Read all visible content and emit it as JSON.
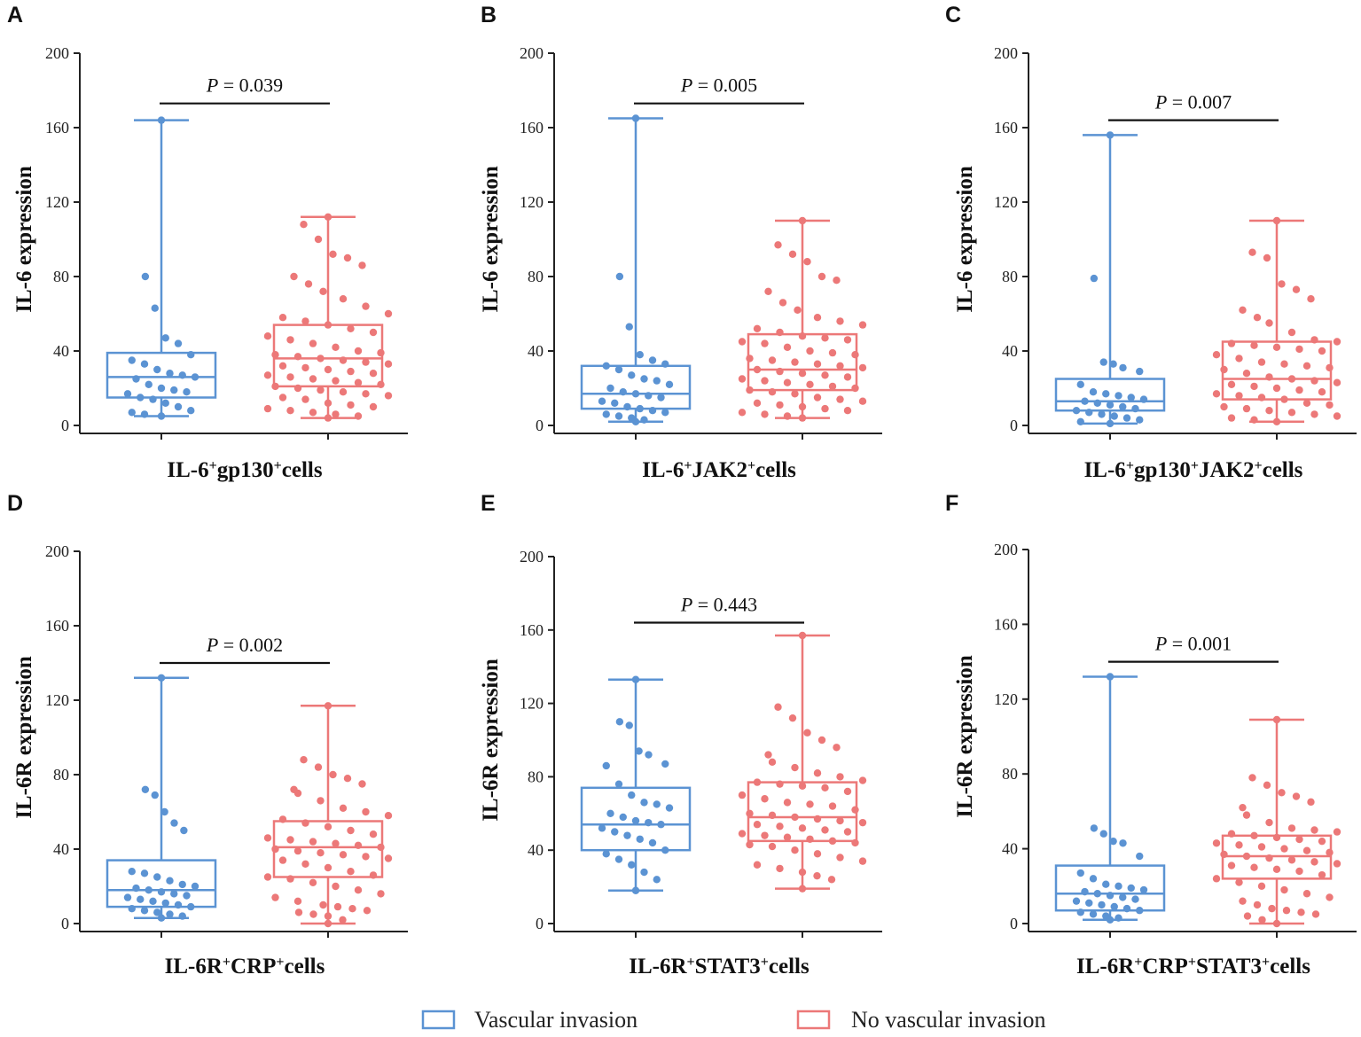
{
  "colors": {
    "vascular": "#5b93d3",
    "no_vascular": "#ec7878",
    "axis": "#222222"
  },
  "legend": {
    "items": [
      "Vascular invasion",
      "No vascular invasion"
    ]
  },
  "chart_data": [
    {
      "letter": "A",
      "type": "box",
      "ylabel": "IL-6 expression",
      "xlabel": {
        "parts": [
          [
            "IL-6",
            false
          ],
          [
            "+",
            true
          ],
          [
            "gp130",
            false
          ],
          [
            "+",
            true
          ],
          [
            "cells",
            false
          ]
        ]
      },
      "ylim": [
        0,
        200
      ],
      "yticks": [
        0,
        40,
        80,
        120,
        160,
        200
      ],
      "p_label": "P",
      "p_value": "= 0.039",
      "bracket_y": 173,
      "groups": [
        {
          "name": "Vascular invasion",
          "min": 5,
          "q1": 15,
          "median": 26,
          "q3": 39,
          "max": 164,
          "points": [
            164,
            80,
            63,
            47,
            44,
            38,
            35,
            33,
            30,
            28,
            27,
            26,
            25,
            22,
            20,
            19,
            18,
            17,
            15,
            14,
            12,
            10,
            8,
            7,
            6,
            5
          ]
        },
        {
          "name": "No vascular invasion",
          "min": 4,
          "q1": 21,
          "median": 36,
          "q3": 54,
          "max": 112,
          "points": [
            112,
            108,
            100,
            92,
            90,
            86,
            80,
            76,
            72,
            68,
            64,
            60,
            58,
            56,
            54,
            52,
            50,
            48,
            46,
            44,
            42,
            40,
            39,
            38,
            37,
            36,
            35,
            34,
            33,
            32,
            31,
            30,
            29,
            28,
            27,
            26,
            25,
            24,
            23,
            22,
            21,
            20,
            19,
            18,
            17,
            16,
            15,
            14,
            12,
            11,
            10,
            9,
            8,
            7,
            6,
            5,
            4
          ]
        }
      ]
    },
    {
      "letter": "B",
      "type": "box",
      "ylabel": "IL-6 expression",
      "xlabel": {
        "parts": [
          [
            "IL-6",
            false
          ],
          [
            "+",
            true
          ],
          [
            "JAK2",
            false
          ],
          [
            "+",
            true
          ],
          [
            "cells",
            false
          ]
        ]
      },
      "ylim": [
        0,
        200
      ],
      "yticks": [
        0,
        40,
        80,
        120,
        160,
        200
      ],
      "p_label": "P",
      "p_value": "= 0.005",
      "bracket_y": 173,
      "groups": [
        {
          "name": "Vascular invasion",
          "min": 2,
          "q1": 9,
          "median": 17,
          "q3": 32,
          "max": 165,
          "points": [
            165,
            80,
            53,
            38,
            35,
            33,
            32,
            30,
            27,
            25,
            24,
            22,
            20,
            18,
            17,
            16,
            15,
            13,
            12,
            10,
            9,
            8,
            7,
            6,
            5,
            4,
            3,
            2
          ]
        },
        {
          "name": "No vascular invasion",
          "min": 4,
          "q1": 19,
          "median": 30,
          "q3": 49,
          "max": 110,
          "points": [
            110,
            97,
            92,
            88,
            80,
            78,
            72,
            66,
            62,
            58,
            56,
            54,
            52,
            50,
            48,
            47,
            46,
            45,
            44,
            42,
            40,
            39,
            38,
            36,
            35,
            34,
            33,
            32,
            31,
            30,
            29,
            28,
            27,
            26,
            25,
            24,
            23,
            22,
            21,
            20,
            19,
            18,
            17,
            15,
            14,
            13,
            12,
            11,
            10,
            9,
            8,
            7,
            6,
            5,
            4
          ]
        }
      ]
    },
    {
      "letter": "C",
      "type": "box",
      "ylabel": "IL-6 expression",
      "xlabel": {
        "parts": [
          [
            "IL-6",
            false
          ],
          [
            "+",
            true
          ],
          [
            "gp130",
            false
          ],
          [
            "+",
            true
          ],
          [
            "JAK2",
            false
          ],
          [
            "+",
            true
          ],
          [
            "cells",
            false
          ]
        ]
      },
      "ylim": [
        0,
        200
      ],
      "yticks": [
        0,
        40,
        80,
        120,
        160,
        200
      ],
      "p_label": "P",
      "p_value": "= 0.007",
      "bracket_y": 164,
      "groups": [
        {
          "name": "Vascular invasion",
          "min": 1,
          "q1": 8,
          "median": 13,
          "q3": 25,
          "max": 156,
          "points": [
            156,
            79,
            34,
            33,
            31,
            29,
            22,
            18,
            17,
            16,
            15,
            14,
            13,
            12,
            11,
            10,
            9,
            8,
            7,
            6,
            5,
            4,
            3,
            2,
            1
          ]
        },
        {
          "name": "No vascular invasion",
          "min": 2,
          "q1": 14,
          "median": 25,
          "q3": 45,
          "max": 110,
          "points": [
            110,
            93,
            90,
            76,
            73,
            68,
            62,
            58,
            55,
            50,
            46,
            45,
            44,
            43,
            42,
            41,
            40,
            38,
            36,
            34,
            33,
            32,
            31,
            30,
            28,
            26,
            25,
            24,
            23,
            22,
            21,
            20,
            19,
            18,
            17,
            16,
            15,
            14,
            12,
            11,
            10,
            9,
            8,
            7,
            6,
            5,
            4,
            3,
            2
          ]
        }
      ]
    },
    {
      "letter": "D",
      "type": "box",
      "ylabel": "IL-6R expression",
      "xlabel": {
        "parts": [
          [
            "IL-6R",
            false
          ],
          [
            "+",
            true
          ],
          [
            "CRP",
            false
          ],
          [
            "+",
            true
          ],
          [
            "cells",
            false
          ]
        ]
      },
      "ylim": [
        0,
        200
      ],
      "yticks": [
        0,
        40,
        80,
        120,
        160,
        200
      ],
      "p_label": "P",
      "p_value": "= 0.002",
      "bracket_y": 140,
      "groups": [
        {
          "name": "Vascular invasion",
          "min": 3,
          "q1": 9,
          "median": 18,
          "q3": 34,
          "max": 132,
          "points": [
            132,
            72,
            69,
            60,
            54,
            50,
            28,
            27,
            25,
            23,
            21,
            20,
            19,
            18,
            17,
            16,
            15,
            14,
            13,
            12,
            11,
            10,
            9,
            8,
            7,
            6,
            5,
            4,
            3
          ]
        },
        {
          "name": "No vascular invasion",
          "min": 0,
          "q1": 25,
          "median": 41,
          "q3": 55,
          "max": 117,
          "points": [
            117,
            88,
            84,
            80,
            78,
            75,
            72,
            70,
            66,
            62,
            60,
            58,
            56,
            54,
            52,
            50,
            48,
            46,
            45,
            44,
            43,
            42,
            41,
            40,
            39,
            38,
            37,
            36,
            35,
            34,
            32,
            30,
            28,
            26,
            25,
            24,
            22,
            20,
            18,
            16,
            14,
            12,
            10,
            9,
            8,
            7,
            6,
            5,
            4,
            2,
            0
          ]
        }
      ]
    },
    {
      "letter": "E",
      "type": "box",
      "ylabel": "IL-6R expression",
      "xlabel": {
        "parts": [
          [
            "IL-6R",
            false
          ],
          [
            "+",
            true
          ],
          [
            "STAT3",
            false
          ],
          [
            "+",
            true
          ],
          [
            "cells",
            false
          ]
        ]
      },
      "ylim": [
        0,
        200
      ],
      "yticks": [
        0,
        40,
        80,
        120,
        160,
        200
      ],
      "p_label": "P",
      "p_value": "= 0.443",
      "bracket_y": 164,
      "groups": [
        {
          "name": "Vascular invasion",
          "min": 18,
          "q1": 40,
          "median": 54,
          "q3": 74,
          "max": 133,
          "points": [
            133,
            110,
            108,
            94,
            92,
            87,
            86,
            76,
            70,
            66,
            65,
            63,
            60,
            58,
            56,
            55,
            54,
            52,
            50,
            48,
            46,
            44,
            40,
            38,
            35,
            32,
            28,
            24,
            18
          ]
        },
        {
          "name": "No vascular invasion",
          "min": 19,
          "q1": 45,
          "median": 58,
          "q3": 77,
          "max": 157,
          "points": [
            157,
            118,
            112,
            104,
            100,
            96,
            92,
            88,
            85,
            82,
            80,
            78,
            77,
            76,
            75,
            74,
            72,
            70,
            68,
            66,
            65,
            64,
            62,
            60,
            59,
            58,
            57,
            56,
            55,
            54,
            53,
            52,
            51,
            50,
            49,
            48,
            47,
            46,
            45,
            44,
            43,
            42,
            40,
            38,
            36,
            34,
            32,
            30,
            28,
            26,
            24,
            19
          ]
        }
      ]
    },
    {
      "letter": "F",
      "type": "box",
      "ylabel": "IL-6R expression",
      "xlabel": {
        "parts": [
          [
            "IL-6R",
            false
          ],
          [
            "+",
            true
          ],
          [
            "CRP",
            false
          ],
          [
            "+",
            true
          ],
          [
            "STAT3",
            false
          ],
          [
            "+",
            true
          ],
          [
            "cells",
            false
          ]
        ]
      },
      "ylim": [
        0,
        200
      ],
      "yticks": [
        0,
        40,
        80,
        120,
        160,
        200
      ],
      "p_label": "P",
      "p_value": "= 0.001",
      "bracket_y": 140,
      "groups": [
        {
          "name": "Vascular invasion",
          "min": 2,
          "q1": 7,
          "median": 16,
          "q3": 31,
          "max": 132,
          "points": [
            132,
            51,
            48,
            44,
            43,
            36,
            27,
            24,
            21,
            20,
            19,
            18,
            17,
            16,
            15,
            14,
            13,
            12,
            11,
            10,
            9,
            8,
            7,
            6,
            5,
            4,
            3,
            2
          ]
        },
        {
          "name": "No vascular invasion",
          "min": 0,
          "q1": 24,
          "median": 36,
          "q3": 47,
          "max": 109,
          "points": [
            109,
            78,
            74,
            70,
            68,
            65,
            62,
            58,
            54,
            51,
            50,
            49,
            48,
            47,
            46,
            45,
            44,
            43,
            42,
            41,
            40,
            39,
            38,
            37,
            36,
            35,
            34,
            33,
            32,
            31,
            30,
            29,
            28,
            26,
            24,
            22,
            20,
            18,
            16,
            14,
            12,
            10,
            8,
            7,
            6,
            5,
            4,
            2,
            0
          ]
        }
      ]
    }
  ]
}
